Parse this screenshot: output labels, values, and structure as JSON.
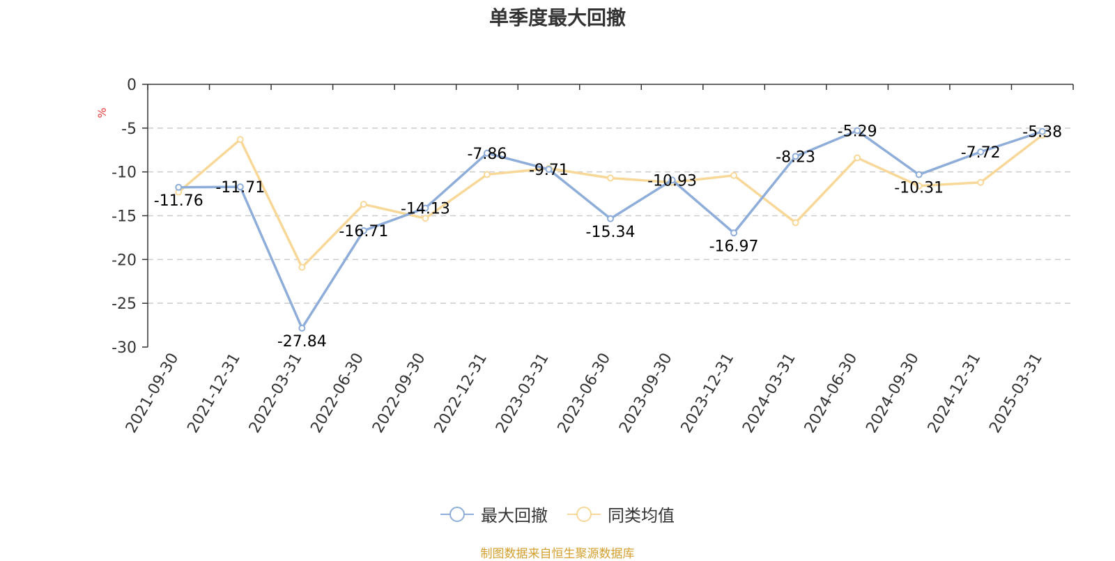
{
  "chart_data": {
    "type": "line",
    "title": "单季度最大回撤",
    "ylabel": "%",
    "ylim": [
      -30,
      0
    ],
    "yticks": [
      0,
      -5,
      -10,
      -15,
      -20,
      -25,
      -30
    ],
    "grid": true,
    "legend_position": "bottom-center",
    "categories": [
      "2021-09-30",
      "2021-12-31",
      "2022-03-31",
      "2022-06-30",
      "2022-09-30",
      "2022-12-31",
      "2023-03-31",
      "2023-06-30",
      "2023-09-30",
      "2023-12-31",
      "2024-03-31",
      "2024-06-30",
      "2024-09-30",
      "2024-12-31",
      "2025-03-31"
    ],
    "series": [
      {
        "name": "最大回撤",
        "color": "#8eadd9",
        "values": [
          -11.76,
          -11.71,
          -27.84,
          -16.71,
          -14.13,
          -7.86,
          -9.71,
          -15.34,
          -10.93,
          -16.97,
          -8.23,
          -5.29,
          -10.31,
          -7.72,
          -5.38
        ],
        "data_labels": [
          "-11.76",
          "-11.71",
          "-27.84",
          "-16.71",
          "-14.13",
          "-7.86",
          "-9.71",
          "-15.34",
          "-10.93",
          "-16.97",
          "-8.23",
          "-5.29",
          "-10.31",
          "-7.72",
          "-5.38"
        ]
      },
      {
        "name": "同类均值",
        "color": "#f8d898",
        "values": [
          -12.3,
          -6.3,
          -20.9,
          -13.7,
          -15.3,
          -10.3,
          -9.6,
          -10.7,
          -11.2,
          -10.4,
          -15.8,
          -8.4,
          -11.6,
          -11.2,
          -5.8
        ]
      }
    ]
  },
  "source_text": "制图数据来自恒生聚源数据库",
  "colors": {
    "title": "#333333",
    "axis": "#333333",
    "grid": "#cccccc",
    "ylabel": "#e83b3b",
    "source": "#d4a030"
  }
}
